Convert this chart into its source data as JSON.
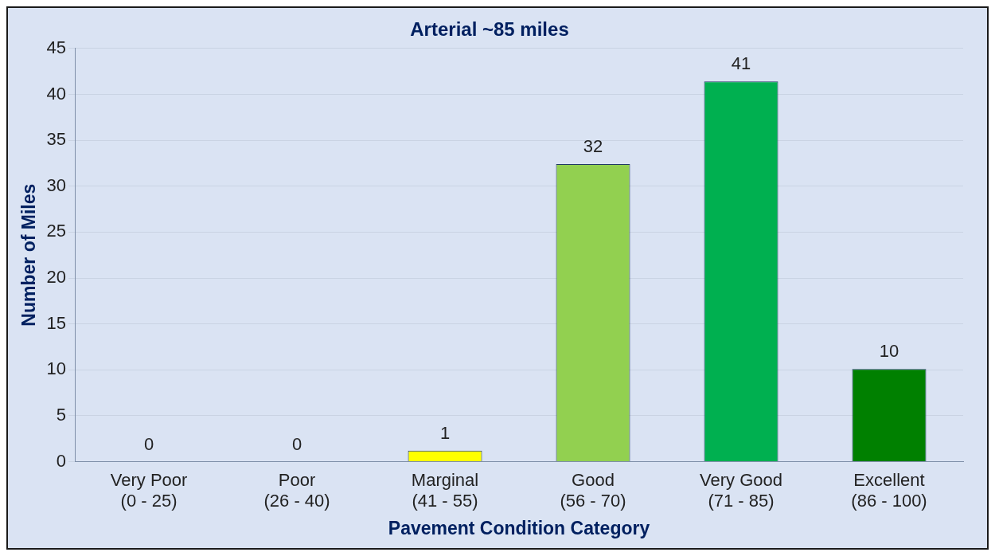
{
  "chart_data": {
    "type": "bar",
    "title": "Arterial ~85 miles",
    "xlabel": "Pavement Condition Category",
    "ylabel": "Number of Miles",
    "categories": [
      "Very Poor\n(0 - 25)",
      "Poor\n(26 - 40)",
      "Marginal\n(41 - 55)",
      "Good\n(56 - 70)",
      "Very Good\n(71 - 85)",
      "Excellent\n(86 - 100)"
    ],
    "values": [
      0,
      0,
      1.2,
      32.4,
      41.4,
      10.1
    ],
    "value_labels": [
      "0",
      "0",
      "1",
      "32",
      "41",
      "10"
    ],
    "colors": [
      "#c00000",
      "#ffc000",
      "#ffff00",
      "#92d050",
      "#00b050",
      "#008000"
    ],
    "ylim": [
      0,
      45
    ],
    "yticks": [
      0,
      5,
      10,
      15,
      20,
      25,
      30,
      35,
      40,
      45
    ],
    "grid": "y",
    "legend": false
  }
}
